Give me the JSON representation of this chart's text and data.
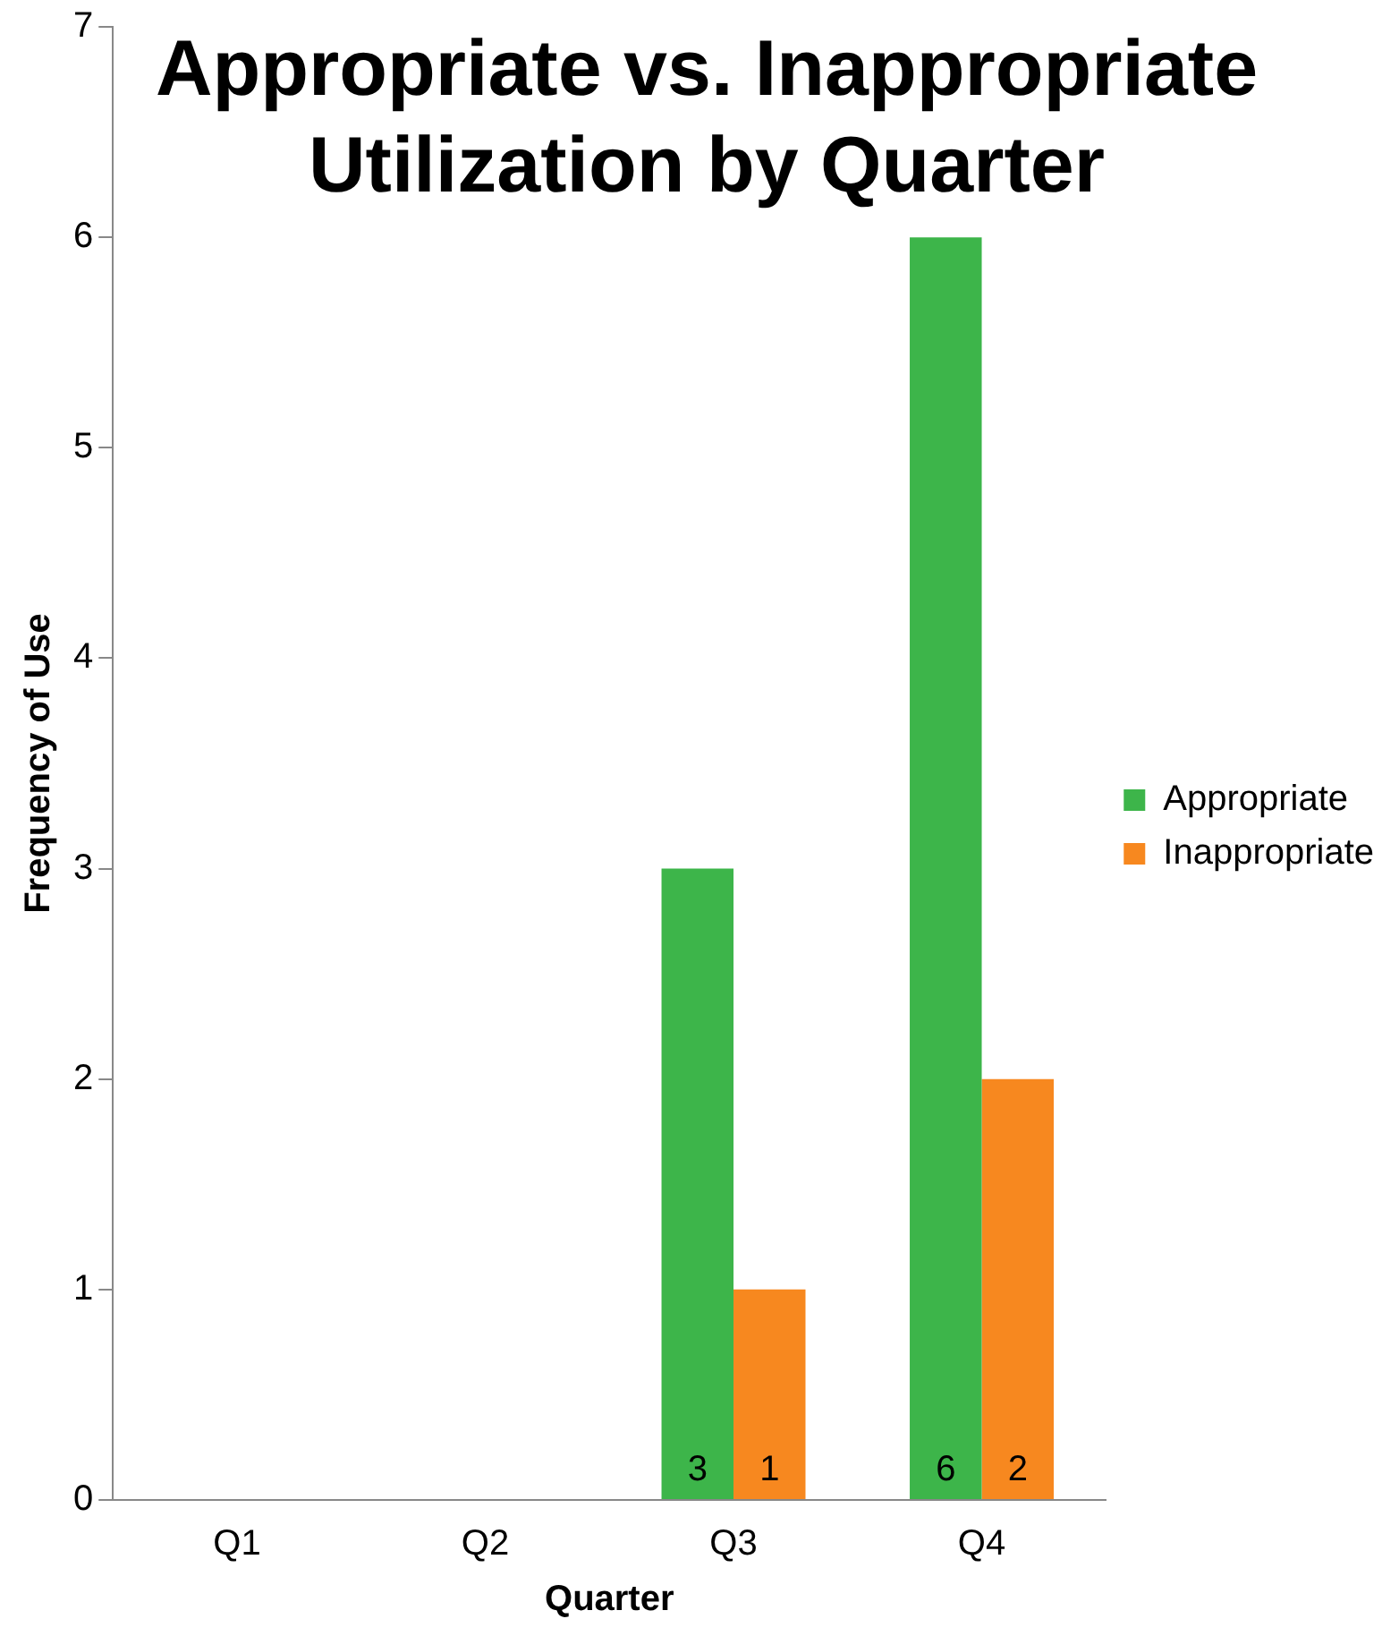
{
  "chart_data": {
    "type": "bar",
    "title": "Appropriate vs. Inappropriate Utilization by Quarter",
    "xlabel": "Quarter",
    "ylabel": "Frequency of Use",
    "categories": [
      "Q1",
      "Q2",
      "Q3",
      "Q4"
    ],
    "series": [
      {
        "name": "Appropriate",
        "color": "#3db54a",
        "values": [
          null,
          null,
          3,
          6
        ]
      },
      {
        "name": "Inappropriate",
        "color": "#f7881f",
        "values": [
          null,
          null,
          1,
          2
        ]
      }
    ],
    "ylim": [
      0,
      7
    ],
    "yticks": [
      0,
      1,
      2,
      3,
      4,
      5,
      6,
      7
    ],
    "grid": false,
    "legend": "right",
    "data_labels": true
  }
}
